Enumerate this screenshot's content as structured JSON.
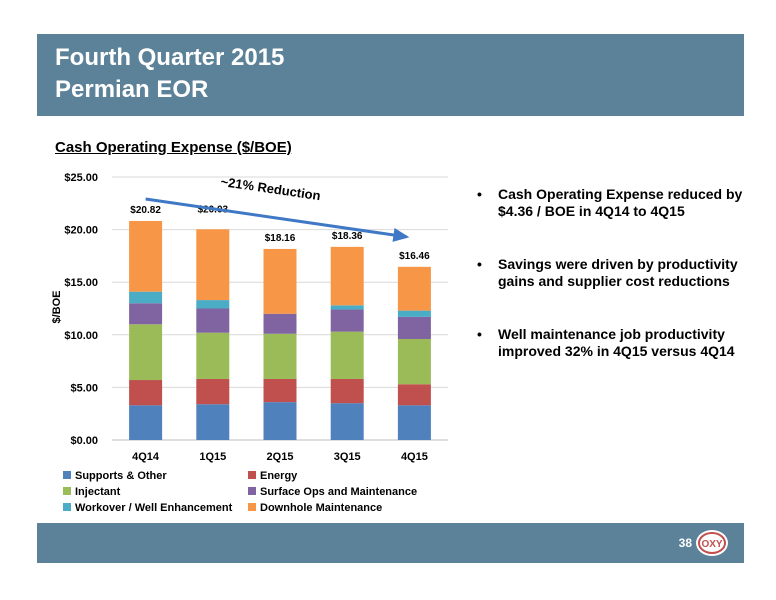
{
  "header": {
    "title_line1": "Fourth Quarter 2015",
    "title_line2": "Permian EOR"
  },
  "section_title": "Cash Operating Expense ($/BOE)",
  "bullets": [
    "Cash Operating Expense reduced by $4.36 / BOE in 4Q14 to 4Q15",
    "Savings were driven by productivity gains and supplier cost reductions",
    "Well maintenance job productivity improved 32% in 4Q15 versus 4Q14"
  ],
  "bullet_symbol": "•",
  "footer": {
    "page_number": "38",
    "logo_text": "OXY"
  },
  "chart_data": {
    "type": "bar",
    "stacked": true,
    "categories": [
      "4Q14",
      "1Q15",
      "2Q15",
      "3Q15",
      "4Q15"
    ],
    "ylabel": "$/BOE",
    "ylim": [
      0,
      25
    ],
    "yticks": [
      0,
      5,
      10,
      15,
      20,
      25
    ],
    "ytick_labels": [
      "$0.00",
      "$5.00",
      "$10.00",
      "$15.00",
      "$20.00",
      "$25.00"
    ],
    "grid": true,
    "legend_position": "bottom",
    "series": [
      {
        "name": "Supports & Other",
        "color": "#4f81bd",
        "values": [
          3.3,
          3.4,
          3.6,
          3.5,
          3.3
        ]
      },
      {
        "name": "Energy",
        "color": "#c0504d",
        "values": [
          2.4,
          2.4,
          2.2,
          2.3,
          2.0
        ]
      },
      {
        "name": "Injectant",
        "color": "#9bbb59",
        "values": [
          5.3,
          4.4,
          4.3,
          4.5,
          4.3
        ]
      },
      {
        "name": "Surface Ops and Maintenance",
        "color": "#8064a2",
        "values": [
          2.0,
          2.3,
          1.9,
          2.1,
          2.1
        ]
      },
      {
        "name": "Workover / Well Enhancement",
        "color": "#4bacc6",
        "values": [
          1.1,
          0.8,
          0.0,
          0.4,
          0.6
        ]
      },
      {
        "name": "Downhole Maintenance",
        "color": "#f79646",
        "values": [
          6.72,
          6.73,
          6.16,
          5.56,
          4.16
        ]
      }
    ],
    "totals": [
      20.82,
      20.03,
      18.16,
      18.36,
      16.46
    ],
    "total_labels": [
      "$20.82",
      "$20.03",
      "$18.16",
      "$18.36",
      "$16.46"
    ],
    "annotation": {
      "text": "~21% Reduction",
      "from_category": "4Q14",
      "to_category": "4Q15",
      "arrow_color": "#3f78c5"
    }
  }
}
